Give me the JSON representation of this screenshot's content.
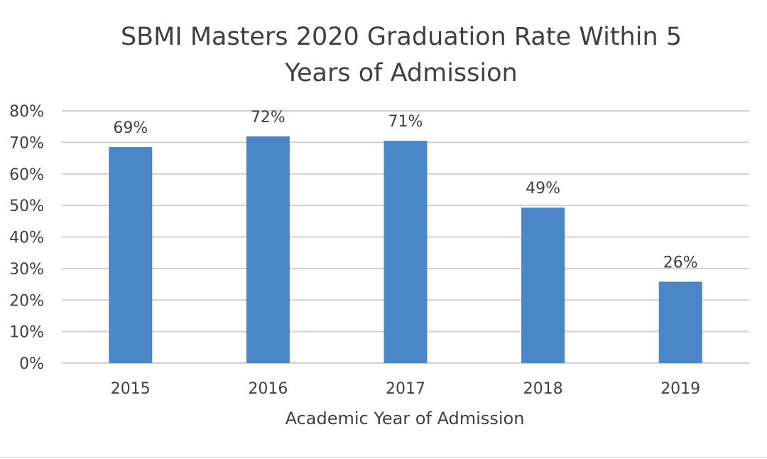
{
  "chart_data": {
    "type": "bar",
    "title": "SBMI Masters 2020 Graduation Rate Within 5 Years of Admission",
    "title_lines": [
      "SBMI Masters 2020 Graduation Rate Within 5",
      "Years of Admission"
    ],
    "xlabel": "Academic Year of Admission",
    "ylabel": "",
    "categories": [
      "2015",
      "2016",
      "2017",
      "2018",
      "2019"
    ],
    "values": [
      68.5,
      71.9,
      70.5,
      49.3,
      25.8
    ],
    "data_labels": [
      "69%",
      "72%",
      "71%",
      "49%",
      "26%"
    ],
    "ylim": [
      0,
      80
    ],
    "yticks": [
      "0%",
      "10%",
      "20%",
      "30%",
      "40%",
      "50%",
      "60%",
      "70%",
      "80%"
    ],
    "grid": true,
    "legend": "none",
    "bar_color": "#4a86c8",
    "grid_color": "#d0d0d0",
    "text_color": "#404040"
  }
}
